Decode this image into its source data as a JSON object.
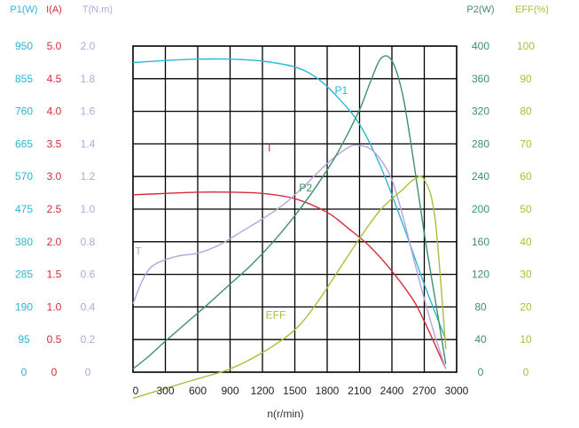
{
  "chart_data": {
    "type": "line",
    "xlabel": "n(r/min)",
    "x_ticks": [
      "0",
      "300",
      "600",
      "900",
      "1200",
      "1500",
      "1800",
      "2100",
      "2400",
      "2700",
      "3000"
    ],
    "xlim": [
      0,
      3000
    ],
    "axes": [
      {
        "id": "p1",
        "header": "P1(W)",
        "color": "#2ab7d6",
        "ticks": [
          "950",
          "855",
          "760",
          "665",
          "570",
          "475",
          "380",
          "285",
          "190",
          "95",
          "0"
        ],
        "range": [
          0,
          950
        ]
      },
      {
        "id": "i",
        "header": "I(A)",
        "color": "#d62a3a",
        "ticks": [
          "5.0",
          "4.5",
          "4.0",
          "3.5",
          "3.0",
          "2.5",
          "2.0",
          "1.5",
          "1.0",
          "0.5",
          "0"
        ],
        "range": [
          0,
          5
        ]
      },
      {
        "id": "t",
        "header": "T(N.m)",
        "color": "#b9a3d9",
        "ticks": [
          "2.0",
          "1.8",
          "1.6",
          "1.4",
          "1.2",
          "1.0",
          "0.8",
          "0.6",
          "0.4",
          "0.2",
          "0"
        ],
        "range": [
          0,
          2
        ]
      },
      {
        "id": "p2",
        "header": "P2(W)",
        "color": "#3f8f6a",
        "ticks": [
          "400",
          "360",
          "320",
          "280",
          "240",
          "200",
          "160",
          "120",
          "80",
          "40",
          "0"
        ],
        "range": [
          0,
          400
        ]
      },
      {
        "id": "eff",
        "header": "EFF(%)",
        "color": "#a3c23a",
        "ticks": [
          "100",
          "90",
          "80",
          "70",
          "60",
          "50",
          "40",
          "30",
          "20",
          "10",
          "0"
        ],
        "range": [
          0,
          100
        ]
      }
    ],
    "series": [
      {
        "name": "P1",
        "axis": "p1",
        "color": "#2ab7d6",
        "label_at": [
          1870,
          810
        ],
        "x": [
          0,
          300,
          600,
          900,
          1200,
          1500,
          1700,
          1900,
          2100,
          2300,
          2500,
          2700,
          2900
        ],
        "y": [
          902,
          908,
          912,
          912,
          906,
          889,
          858,
          800,
          722,
          596,
          432,
          256,
          95
        ]
      },
      {
        "name": "I",
        "axis": "i",
        "color": "#d62a3a",
        "label_at": [
          1250,
          3.38
        ],
        "x": [
          0,
          300,
          600,
          900,
          1200,
          1500,
          1800,
          2000,
          2200,
          2400,
          2600,
          2700,
          2800,
          2900
        ],
        "y": [
          2.72,
          2.74,
          2.76,
          2.76,
          2.74,
          2.66,
          2.45,
          2.2,
          1.92,
          1.55,
          1.1,
          0.78,
          0.42,
          0.05
        ]
      },
      {
        "name": "T",
        "axis": "t",
        "color": "#b9a3d9",
        "label_at": [
          20,
          0.72
        ],
        "x": [
          0,
          100,
          200,
          400,
          600,
          800,
          1000,
          1200,
          1400,
          1600,
          1800,
          2000,
          2100,
          2200,
          2300,
          2400,
          2500,
          2600,
          2700,
          2800,
          2900
        ],
        "y": [
          0.42,
          0.58,
          0.66,
          0.71,
          0.73,
          0.78,
          0.86,
          0.94,
          1.03,
          1.15,
          1.28,
          1.38,
          1.39,
          1.37,
          1.3,
          1.18,
          0.96,
          0.7,
          0.45,
          0.22,
          0.02
        ]
      },
      {
        "name": "P2",
        "axis": "p2",
        "color": "#3f8f6a",
        "label_at": [
          1540,
          222
        ],
        "x": [
          0,
          150,
          300,
          500,
          700,
          900,
          1100,
          1300,
          1500,
          1700,
          1900,
          2100,
          2200,
          2300,
          2400,
          2500,
          2600,
          2700,
          2800,
          2900
        ],
        "y": [
          4,
          20,
          38,
          61,
          84,
          108,
          132,
          160,
          192,
          228,
          270,
          322,
          356,
          385,
          382,
          340,
          260,
          170,
          90,
          10
        ]
      },
      {
        "name": "EFF",
        "axis": "eff",
        "color": "#a3c23a",
        "label_at": [
          1230,
          16.5
        ],
        "x": [
          0,
          300,
          600,
          900,
          1200,
          1500,
          1700,
          1900,
          2100,
          2300,
          2500,
          2600,
          2700,
          2800,
          2900
        ],
        "y": [
          -8,
          -5,
          -2,
          1,
          6,
          13,
          21,
          31,
          41,
          50,
          56,
          59,
          59,
          47,
          7
        ]
      }
    ],
    "grid": true
  }
}
